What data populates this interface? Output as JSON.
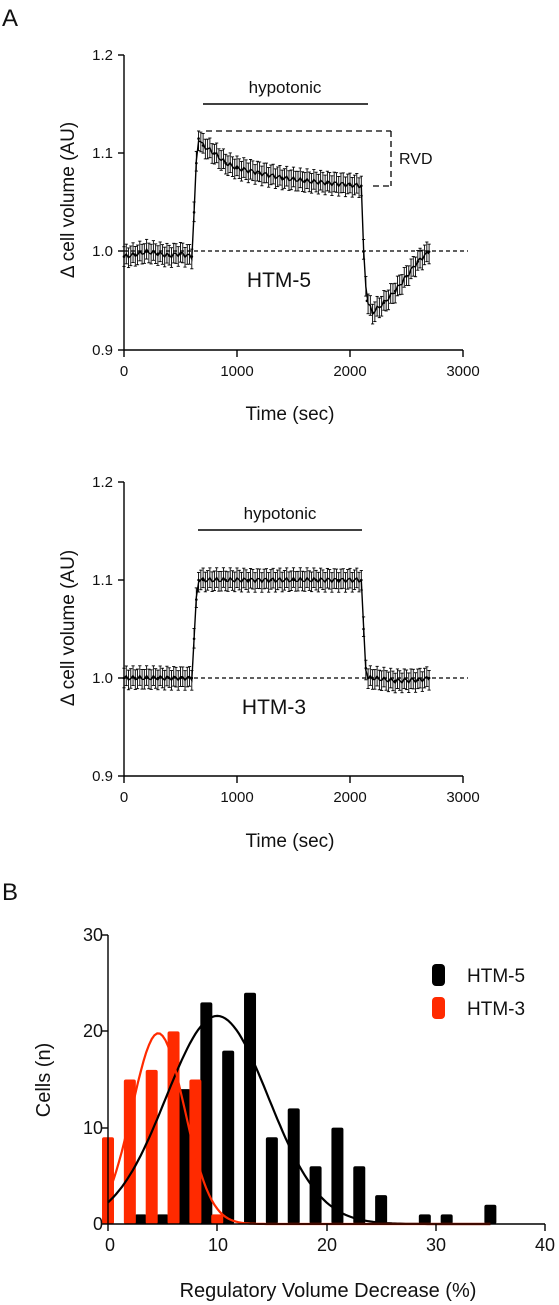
{
  "panel_labels": {
    "a": "A",
    "b": "B"
  },
  "colors": {
    "htm5": "#000000",
    "htm3": "#ff2a00"
  },
  "chart_data": [
    {
      "type": "line",
      "panel": "A",
      "subplot": "top",
      "cell_label": "HTM-5",
      "annotation": "hypotonic",
      "rvd_label": "RVD",
      "xlabel": "Time (sec)",
      "ylabel": "Δ cell volume (AU)",
      "xlim": [
        0,
        3000
      ],
      "ylim": [
        0.9,
        1.2
      ],
      "xticks": [
        "0",
        "1000",
        "2000",
        "3000"
      ],
      "yticks": [
        "0.9",
        "1.0",
        "1.1",
        "1.2"
      ],
      "hypotonic_window": [
        700,
        2100
      ],
      "baseline": 1.0,
      "error_bar": 0.01,
      "x": [
        0,
        100,
        200,
        300,
        400,
        500,
        600,
        620,
        640,
        660,
        700,
        800,
        900,
        1000,
        1200,
        1400,
        1600,
        1800,
        2000,
        2100,
        2120,
        2150,
        2200,
        2300,
        2400,
        2500,
        2600,
        2700
      ],
      "values": [
        0.995,
        0.997,
        1.0,
        0.998,
        0.996,
        0.998,
        0.995,
        1.04,
        1.09,
        1.115,
        1.108,
        1.1,
        1.09,
        1.085,
        1.08,
        1.075,
        1.072,
        1.07,
        1.068,
        1.067,
        1.0,
        0.95,
        0.938,
        0.948,
        0.96,
        0.975,
        0.99,
        1.0
      ]
    },
    {
      "type": "line",
      "panel": "A",
      "subplot": "bottom",
      "cell_label": "HTM-3",
      "annotation": "hypotonic",
      "xlabel": "Time (sec)",
      "ylabel": "Δ cell volume (AU)",
      "xlim": [
        0,
        3000
      ],
      "ylim": [
        0.9,
        1.2
      ],
      "xticks": [
        "0",
        "1000",
        "2000",
        "3000"
      ],
      "yticks": [
        "0.9",
        "1.0",
        "1.1",
        "1.2"
      ],
      "hypotonic_window": [
        650,
        2080
      ],
      "baseline": 1.0,
      "error_bar": 0.01,
      "x": [
        0,
        100,
        200,
        300,
        400,
        500,
        600,
        620,
        640,
        660,
        700,
        900,
        1100,
        1300,
        1500,
        1700,
        1900,
        2100,
        2120,
        2140,
        2160,
        2200,
        2400,
        2600,
        2700
      ],
      "values": [
        1.0,
        1.0,
        1.0,
        1.0,
        1.0,
        1.0,
        1.0,
        1.04,
        1.08,
        1.1,
        1.1,
        1.1,
        1.1,
        1.1,
        1.1,
        1.1,
        1.1,
        1.1,
        1.05,
        1.01,
        1.0,
        1.0,
        0.997,
        0.998,
        1.0
      ]
    },
    {
      "type": "bar",
      "panel": "B",
      "xlabel": "Regulatory Volume Decrease (%)",
      "ylabel": "Cells (n)",
      "xlim": [
        0,
        40
      ],
      "ylim": [
        0,
        30
      ],
      "xticks": [
        "0",
        "10",
        "20",
        "30",
        "40"
      ],
      "yticks": [
        "0",
        "10",
        "20",
        "30"
      ],
      "legend_position": "top-right",
      "series": [
        {
          "name": "HTM-5",
          "color": "#000000",
          "x": [
            3,
            5,
            7,
            9,
            11,
            13,
            15,
            17,
            19,
            21,
            23,
            25,
            29,
            31,
            35
          ],
          "values": [
            1,
            1,
            14,
            23,
            18,
            24,
            9,
            12,
            6,
            10,
            6,
            3,
            1,
            1,
            2
          ],
          "fit_mean": 10.0,
          "fit_sd": 4.7,
          "fit_peak": 21.6
        },
        {
          "name": "HTM-3",
          "color": "#ff2a00",
          "x": [
            0,
            2,
            4,
            6,
            8,
            10
          ],
          "values": [
            9,
            15,
            16,
            20,
            15,
            1
          ],
          "fit_mean": 4.6,
          "fit_sd": 2.4,
          "fit_peak": 19.8
        }
      ]
    }
  ]
}
